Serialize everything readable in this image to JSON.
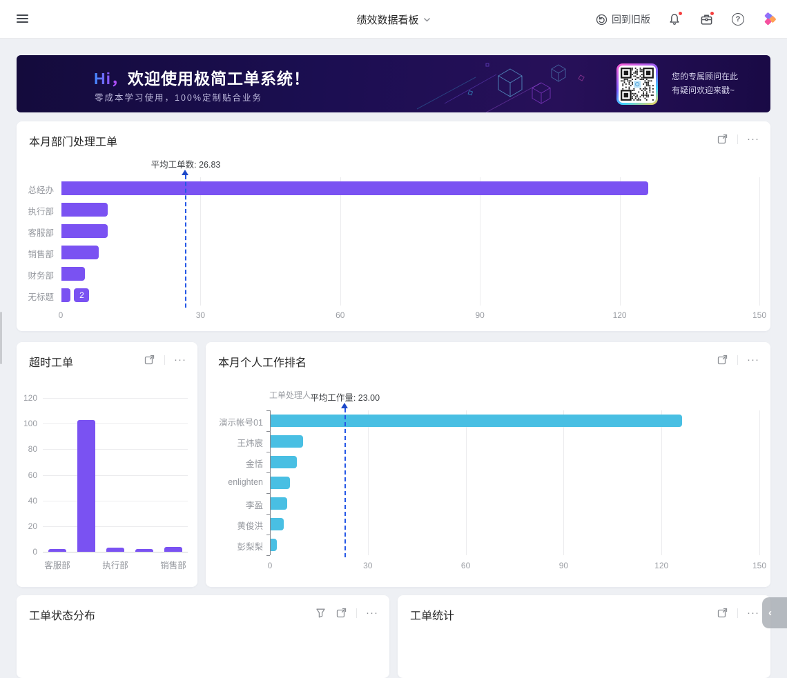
{
  "navbar": {
    "title": "绩效数据看板",
    "back_label": "回到旧版"
  },
  "icons": {
    "more": "···",
    "collapse": "‹",
    "help": "?"
  },
  "banner": {
    "greeting": "Hi，",
    "title": "欢迎使用极简工单系统！",
    "subtitle": "零成本学习使用，100%定制贴合业务",
    "qr_line1": "您的专属顾问在此",
    "qr_line2": "有疑问欢迎来戳~"
  },
  "cards": {
    "dept": {
      "title": "本月部门处理工单"
    },
    "overtime": {
      "title": "超时工单"
    },
    "personal": {
      "title": "本月个人工作排名"
    },
    "status": {
      "title": "工单状态分布"
    },
    "stats": {
      "title": "工单统计"
    }
  },
  "colors": {
    "purple": "#7a52f2",
    "cyan": "#49bfe3",
    "avg_line": "#2457e6"
  },
  "chart_data": [
    {
      "id": "dept",
      "type": "bar",
      "orientation": "horizontal",
      "title": "本月部门处理工单",
      "categories": [
        "总经办",
        "执行部",
        "客服部",
        "销售部",
        "财务部",
        "无标题"
      ],
      "values": [
        126,
        10,
        10,
        8,
        5,
        2
      ],
      "xticks": [
        0,
        30,
        60,
        90,
        120,
        150
      ],
      "xlim": [
        0,
        150
      ],
      "grid": "vertical",
      "bar_color": "#7a52f2",
      "average": {
        "label": "平均工单数: 26.83",
        "value": 26.83
      },
      "data_label": {
        "category": "无标题",
        "text": "2"
      }
    },
    {
      "id": "overtime",
      "type": "bar",
      "orientation": "vertical",
      "title": "超时工单",
      "categories": [
        "客服部",
        "",
        "执行部",
        "",
        "销售部"
      ],
      "values": [
        2,
        103,
        3,
        2,
        4
      ],
      "yticks": [
        0,
        20,
        40,
        60,
        80,
        100,
        120
      ],
      "ylim": [
        0,
        120
      ],
      "grid": "horizontal",
      "bar_color": "#7a52f2"
    },
    {
      "id": "personal",
      "type": "bar",
      "orientation": "horizontal",
      "title": "本月个人工作排名",
      "axis_name": "工单处理人",
      "categories": [
        "演示帐号01",
        "王炜宸",
        "金恬",
        "enlighten",
        "李盈",
        "黄俊洪",
        "彭梨梨"
      ],
      "values": [
        126,
        10,
        8,
        6,
        5,
        4,
        2
      ],
      "xticks": [
        0,
        30,
        60,
        90,
        120,
        150
      ],
      "xlim": [
        0,
        150
      ],
      "grid": "vertical",
      "bar_color": "#49bfe3",
      "average": {
        "label": "平均工作量: 23.00",
        "value": 23
      }
    }
  ]
}
